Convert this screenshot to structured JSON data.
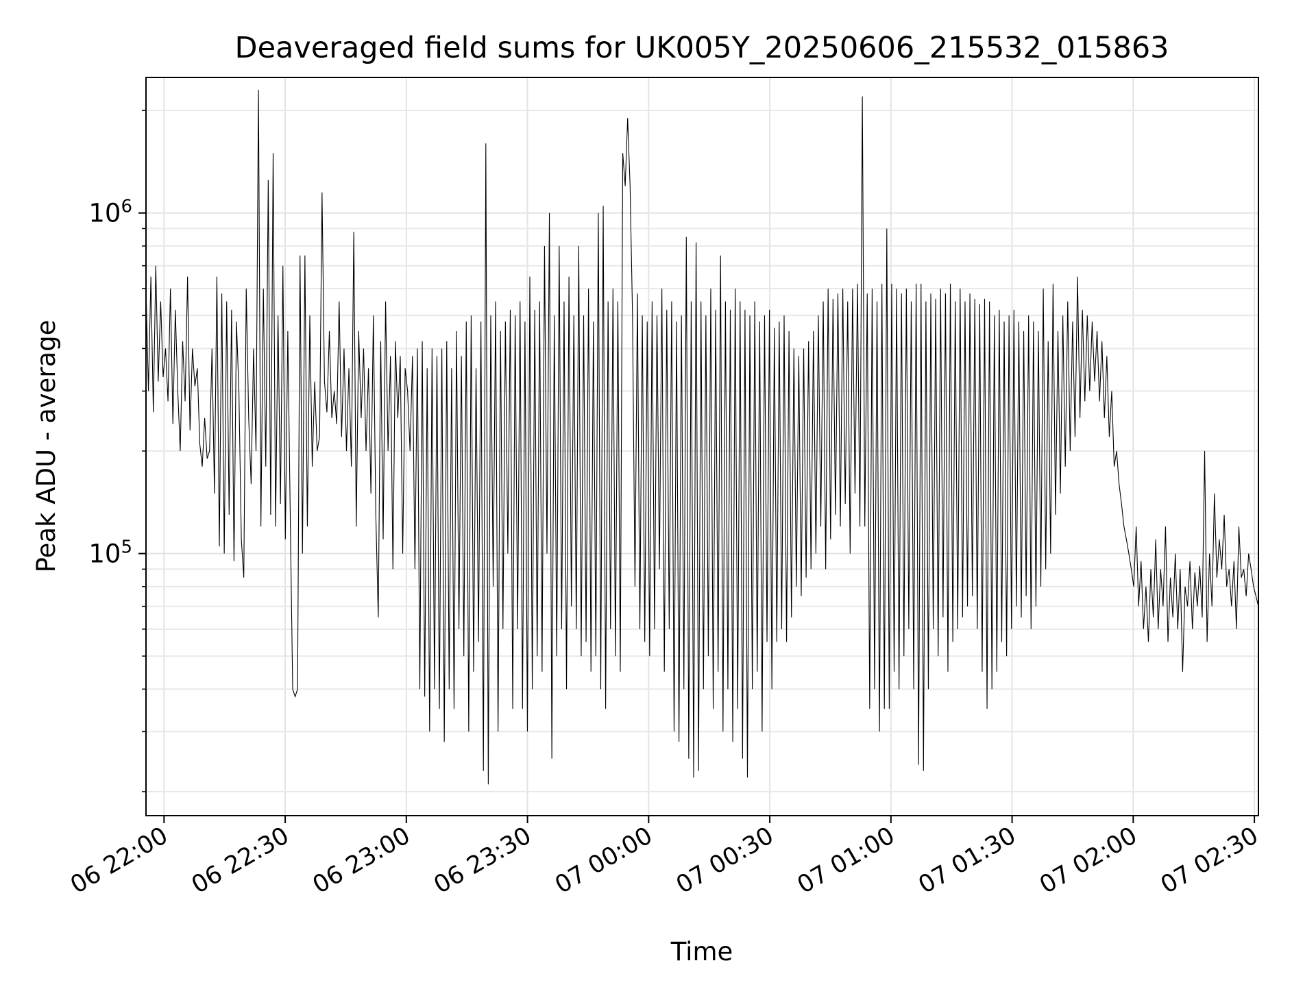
{
  "chart_data": {
    "type": "line",
    "title": "Deaveraged field sums for UK005Y_20250606_215532_015863",
    "xlabel": "Time",
    "ylabel": "Peak ADU - average",
    "yscale": "log",
    "grid": true,
    "line_color": "#000000",
    "x_ticks": [
      "06 22:00",
      "06 22:30",
      "06 23:00",
      "06 23:30",
      "07 00:00",
      "07 00:30",
      "07 01:00",
      "07 01:30",
      "07 02:00",
      "07 02:30"
    ],
    "y_ticks": [
      {
        "base": "10",
        "exp": "5",
        "value": 100000
      },
      {
        "base": "10",
        "exp": "6",
        "value": 1000000
      }
    ],
    "xlim": [
      "2025-06-06T21:55:32",
      "2025-06-07T02:31:00"
    ],
    "ylim": [
      17000,
      2500000
    ],
    "series": [
      {
        "x_start": "2025-06-06T21:55:32",
        "x_end": "2025-06-07T02:31:00",
        "values": [
          600000,
          300000,
          650000,
          260000,
          700000,
          320000,
          550000,
          330000,
          400000,
          280000,
          600000,
          240000,
          520000,
          300000,
          200000,
          420000,
          280000,
          650000,
          230000,
          400000,
          310000,
          350000,
          210000,
          180000,
          250000,
          190000,
          200000,
          400000,
          150000,
          650000,
          105000,
          580000,
          100000,
          550000,
          130000,
          520000,
          95000,
          480000,
          300000,
          110000,
          85000,
          600000,
          250000,
          160000,
          400000,
          200000,
          2300000,
          120000,
          600000,
          180000,
          1250000,
          130000,
          1500000,
          120000,
          500000,
          140000,
          700000,
          110000,
          450000,
          130000,
          40000,
          38000,
          40000,
          750000,
          100000,
          750000,
          120000,
          500000,
          180000,
          320000,
          200000,
          220000,
          1150000,
          320000,
          260000,
          450000,
          250000,
          300000,
          240000,
          550000,
          220000,
          400000,
          200000,
          350000,
          180000,
          880000,
          120000,
          450000,
          250000,
          400000,
          200000,
          350000,
          150000,
          500000,
          130000,
          65000,
          420000,
          110000,
          550000,
          200000,
          380000,
          90000,
          420000,
          250000,
          380000,
          100000,
          350000,
          300000,
          200000,
          380000,
          90000,
          400000,
          40000,
          420000,
          38000,
          350000,
          30000,
          400000,
          40000,
          380000,
          35000,
          400000,
          28000,
          420000,
          40000,
          350000,
          35000,
          450000,
          60000,
          380000,
          50000,
          480000,
          30000,
          500000,
          45000,
          350000,
          55000,
          480000,
          23000,
          1600000,
          21000,
          500000,
          80000,
          550000,
          30000,
          450000,
          60000,
          480000,
          100000,
          520000,
          35000,
          500000,
          60000,
          550000,
          35000,
          480000,
          30000,
          650000,
          40000,
          520000,
          50000,
          550000,
          45000,
          800000,
          100000,
          1000000,
          25000,
          500000,
          50000,
          800000,
          60000,
          550000,
          40000,
          650000,
          70000,
          500000,
          60000,
          800000,
          50000,
          500000,
          55000,
          600000,
          45000,
          480000,
          50000,
          1000000,
          40000,
          1050000,
          35000,
          550000,
          60000,
          600000,
          50000,
          550000,
          45000,
          1500000,
          1200000,
          1900000,
          1200000,
          500000,
          80000,
          580000,
          60000,
          500000,
          55000,
          480000,
          50000,
          550000,
          60000,
          500000,
          90000,
          600000,
          45000,
          520000,
          60000,
          550000,
          30000,
          480000,
          28000,
          500000,
          40000,
          850000,
          25000,
          550000,
          22000,
          820000,
          23000,
          550000,
          40000,
          500000,
          50000,
          600000,
          35000,
          520000,
          45000,
          750000,
          30000,
          550000,
          40000,
          520000,
          28000,
          600000,
          35000,
          550000,
          25000,
          520000,
          22000,
          500000,
          40000,
          550000,
          45000,
          480000,
          30000,
          500000,
          55000,
          520000,
          40000,
          460000,
          55000,
          480000,
          60000,
          500000,
          55000,
          450000,
          65000,
          400000,
          80000,
          380000,
          75000,
          400000,
          85000,
          420000,
          90000,
          450000,
          100000,
          500000,
          120000,
          550000,
          90000,
          600000,
          110000,
          560000,
          130000,
          580000,
          120000,
          600000,
          140000,
          550000,
          100000,
          600000,
          150000,
          620000,
          120000,
          2200000,
          120000,
          580000,
          35000,
          600000,
          40000,
          550000,
          30000,
          620000,
          35000,
          900000,
          35000,
          620000,
          45000,
          600000,
          40000,
          580000,
          50000,
          600000,
          60000,
          550000,
          40000,
          620000,
          24000,
          620000,
          23000,
          550000,
          40000,
          580000,
          60000,
          560000,
          50000,
          600000,
          65000,
          580000,
          45000,
          620000,
          55000,
          550000,
          60000,
          600000,
          65000,
          550000,
          70000,
          580000,
          75000,
          560000,
          60000,
          540000,
          45000,
          560000,
          35000,
          550000,
          40000,
          500000,
          45000,
          520000,
          55000,
          480000,
          50000,
          500000,
          60000,
          520000,
          70000,
          480000,
          65000,
          450000,
          75000,
          500000,
          60000,
          480000,
          70000,
          450000,
          80000,
          600000,
          90000,
          420000,
          100000,
          620000,
          130000,
          450000,
          150000,
          500000,
          180000,
          550000,
          200000,
          480000,
          220000,
          650000,
          250000,
          520000,
          280000,
          500000,
          300000,
          480000,
          320000,
          450000,
          280000,
          420000,
          250000,
          380000,
          220000,
          300000,
          180000,
          200000,
          160000,
          140000,
          120000,
          110000,
          100000,
          90000,
          80000,
          120000,
          70000,
          95000,
          60000,
          80000,
          55000,
          90000,
          65000,
          110000,
          60000,
          90000,
          70000,
          120000,
          55000,
          85000,
          65000,
          100000,
          60000,
          90000,
          45000,
          80000,
          70000,
          95000,
          60000,
          88000,
          70000,
          92000,
          65000,
          200000,
          55000,
          100000,
          70000,
          150000,
          85000,
          110000,
          90000,
          130000,
          80000,
          90000,
          70000,
          95000,
          60000,
          120000,
          85000,
          90000,
          75000,
          100000,
          90000,
          80000,
          75000,
          70000
        ]
      }
    ]
  }
}
